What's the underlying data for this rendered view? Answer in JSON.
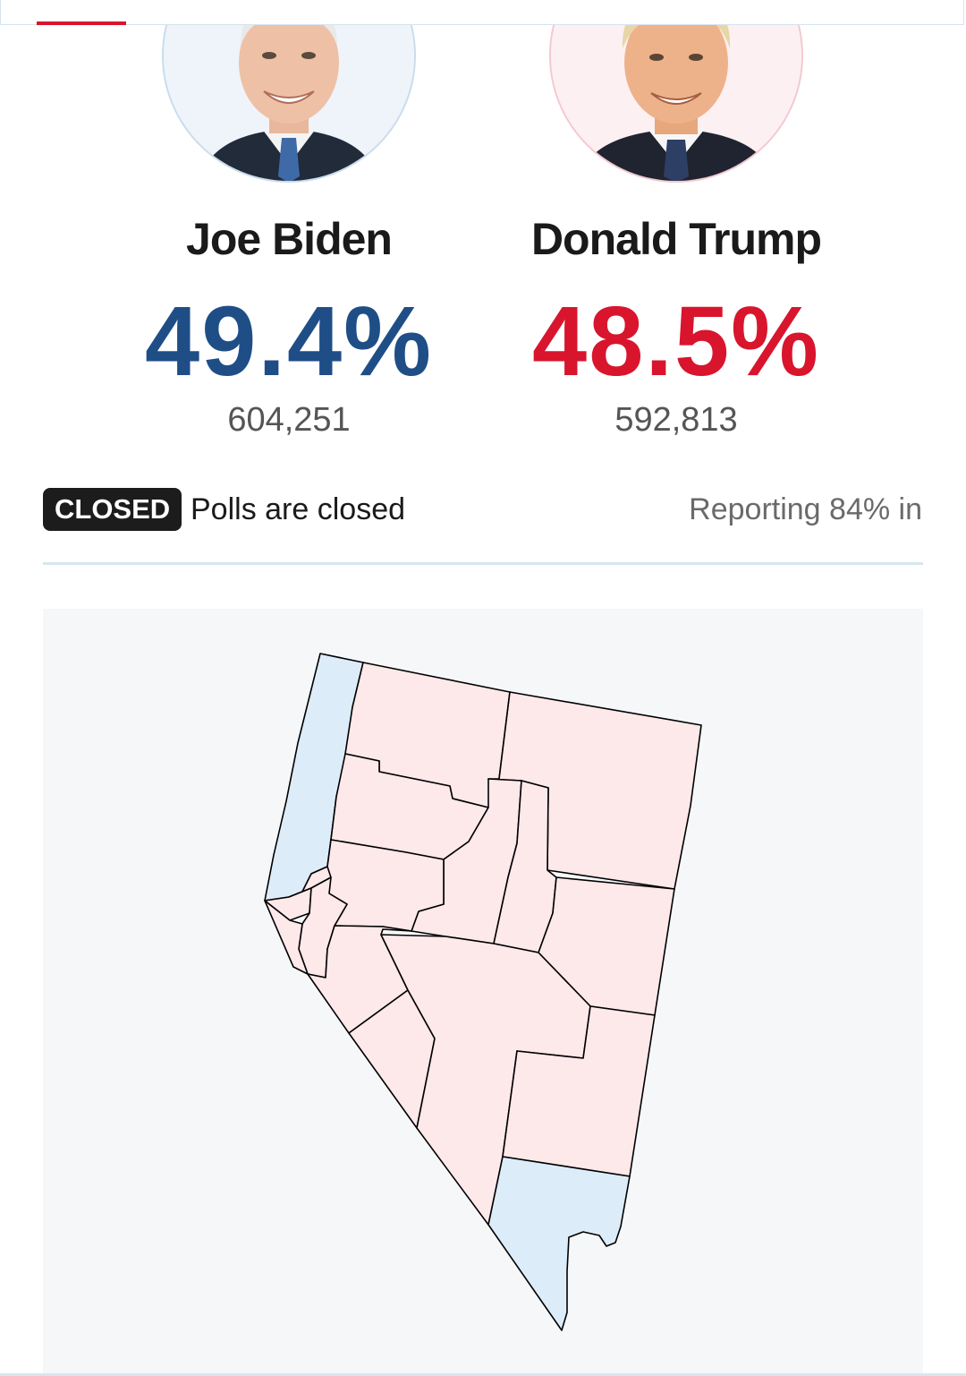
{
  "candidates": [
    {
      "name": "Joe Biden",
      "percent": "49.4%",
      "votes": "604,251",
      "color": "#1f4e87"
    },
    {
      "name": "Donald Trump",
      "percent": "48.5%",
      "votes": "592,813",
      "color": "#d8152d"
    }
  ],
  "status": {
    "badge": "CLOSED",
    "text": "Polls are closed",
    "reporting": "Reporting 84% in"
  },
  "map": {
    "dem_fill": "#ddecf9",
    "rep_fill": "#fde8ea",
    "border_color": "#000000"
  }
}
